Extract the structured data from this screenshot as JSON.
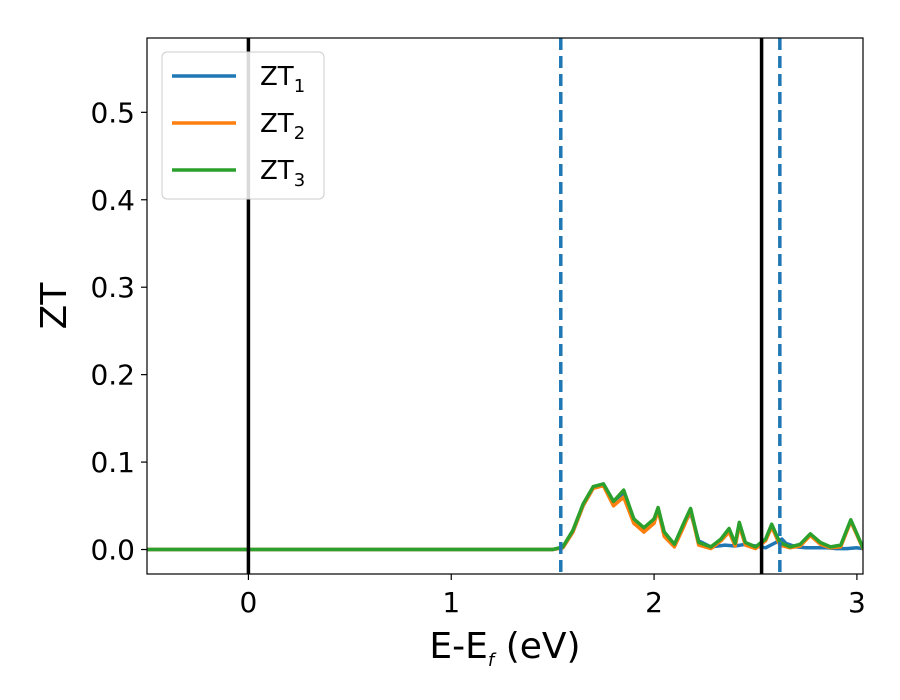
{
  "chart_data": {
    "type": "line",
    "xlabel_main": "E-E",
    "xlabel_sub": "f",
    "xlabel_unit": " (eV)",
    "ylabel": "ZT",
    "xlim": [
      -0.5,
      3.03
    ],
    "ylim": [
      -0.028,
      0.585
    ],
    "xticks": [
      0,
      1,
      2,
      3
    ],
    "yticks": [
      0.0,
      0.1,
      0.2,
      0.3,
      0.4,
      0.5
    ],
    "xtick_labels": [
      "0",
      "1",
      "2",
      "3"
    ],
    "ytick_labels": [
      "0.0",
      "0.1",
      "0.2",
      "0.3",
      "0.4",
      "0.5"
    ],
    "grid": false,
    "legend_position": "top-left",
    "series": [
      {
        "name": "ZT",
        "sub": "1",
        "color": "#1f77b4",
        "x": [
          -0.5,
          1.45,
          1.5,
          1.55,
          1.6,
          1.65,
          1.7,
          1.75,
          1.8,
          1.85,
          1.9,
          1.95,
          2.0,
          2.02,
          2.05,
          2.1,
          2.15,
          2.18,
          2.22,
          2.28,
          2.35,
          2.4,
          2.45,
          2.5,
          2.55,
          2.6,
          2.63,
          2.65,
          2.7,
          2.75,
          2.8,
          2.85,
          2.9,
          2.95,
          3.0,
          3.03
        ],
        "y": [
          0.0,
          0.0,
          0.0,
          0.002,
          0.02,
          0.05,
          0.07,
          0.075,
          0.055,
          0.065,
          0.035,
          0.02,
          0.035,
          0.046,
          0.02,
          0.005,
          0.03,
          0.042,
          0.01,
          0.003,
          0.005,
          0.004,
          0.006,
          0.004,
          0.002,
          0.008,
          0.012,
          0.007,
          0.003,
          0.002,
          0.002,
          0.002,
          0.001,
          0.001,
          0.002,
          0.001
        ]
      },
      {
        "name": "ZT",
        "sub": "2",
        "color": "#ff7f0e",
        "x": [
          -0.5,
          1.45,
          1.5,
          1.55,
          1.6,
          1.65,
          1.7,
          1.75,
          1.8,
          1.85,
          1.9,
          1.95,
          2.0,
          2.02,
          2.05,
          2.1,
          2.15,
          2.18,
          2.22,
          2.28,
          2.33,
          2.37,
          2.4,
          2.42,
          2.45,
          2.5,
          2.55,
          2.58,
          2.62,
          2.67,
          2.72,
          2.77,
          2.82,
          2.87,
          2.92,
          2.97,
          3.03
        ],
        "y": [
          0.0,
          0.0,
          0.0,
          0.002,
          0.02,
          0.05,
          0.07,
          0.073,
          0.05,
          0.06,
          0.03,
          0.02,
          0.03,
          0.045,
          0.015,
          0.003,
          0.028,
          0.045,
          0.005,
          0.001,
          0.01,
          0.02,
          0.004,
          0.027,
          0.005,
          0.001,
          0.01,
          0.026,
          0.005,
          0.002,
          0.004,
          0.016,
          0.006,
          0.002,
          0.003,
          0.032,
          0.001
        ]
      },
      {
        "name": "ZT",
        "sub": "3",
        "color": "#2ca02c",
        "x": [
          -0.5,
          1.45,
          1.5,
          1.55,
          1.6,
          1.65,
          1.7,
          1.75,
          1.8,
          1.85,
          1.9,
          1.95,
          2.0,
          2.02,
          2.05,
          2.1,
          2.15,
          2.18,
          2.22,
          2.28,
          2.33,
          2.37,
          2.4,
          2.42,
          2.45,
          2.5,
          2.55,
          2.58,
          2.62,
          2.67,
          2.72,
          2.77,
          2.82,
          2.87,
          2.92,
          2.97,
          3.03
        ],
        "y": [
          0.0,
          0.0,
          0.0,
          0.003,
          0.022,
          0.052,
          0.072,
          0.075,
          0.055,
          0.068,
          0.035,
          0.025,
          0.035,
          0.048,
          0.02,
          0.006,
          0.032,
          0.047,
          0.008,
          0.003,
          0.012,
          0.024,
          0.007,
          0.031,
          0.008,
          0.003,
          0.012,
          0.029,
          0.008,
          0.003,
          0.006,
          0.018,
          0.008,
          0.003,
          0.005,
          0.034,
          0.002
        ]
      }
    ],
    "vlines": [
      {
        "x": 0.0,
        "style": "solid",
        "color": "#000000"
      },
      {
        "x": 2.53,
        "style": "solid",
        "color": "#000000"
      },
      {
        "x": 1.54,
        "style": "dashed",
        "color": "#1f77b4"
      },
      {
        "x": 2.62,
        "style": "dashed",
        "color": "#1f77b4"
      }
    ]
  }
}
